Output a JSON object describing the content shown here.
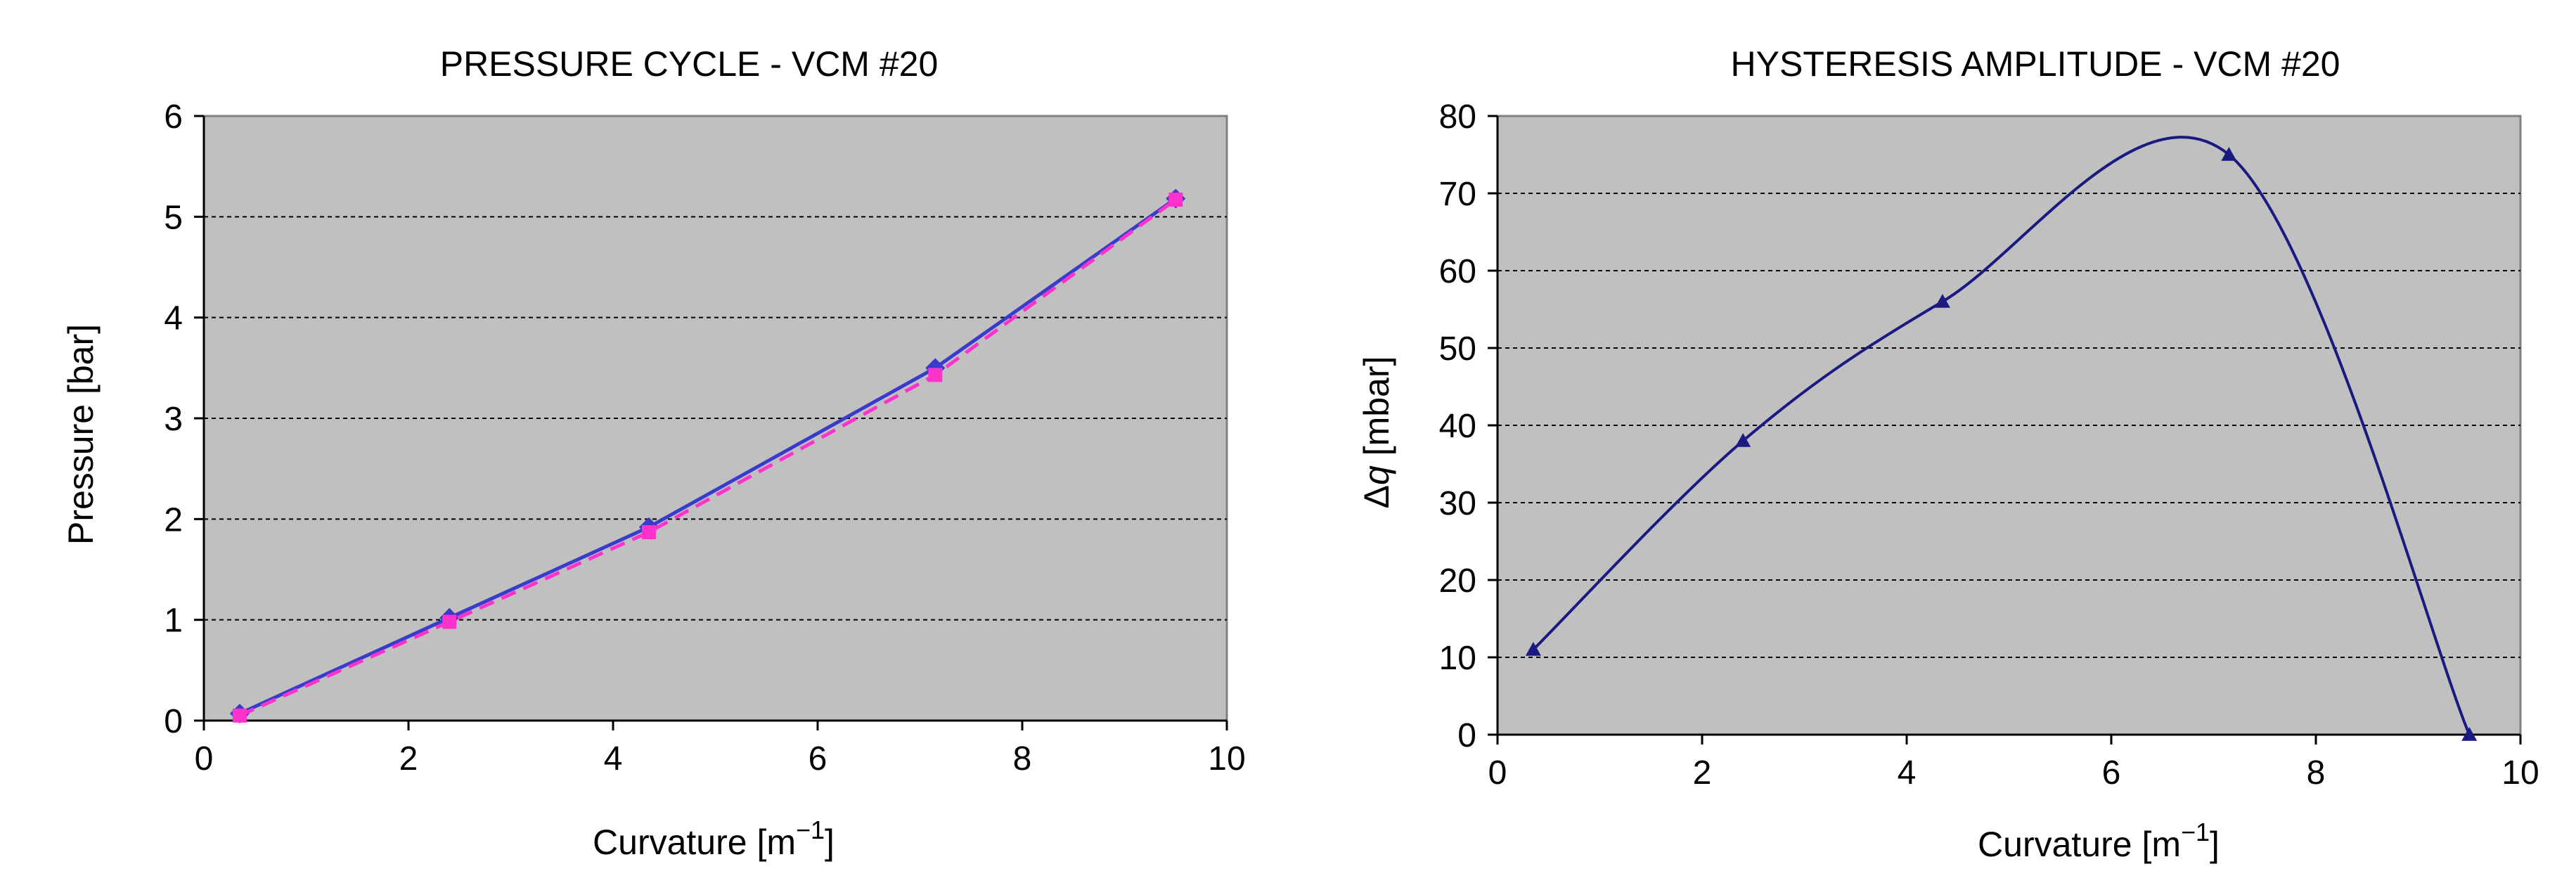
{
  "chart_data": [
    {
      "type": "line",
      "title": "PRESSURE CYCLE - VCM #20",
      "xlabel_main": "Curvature  [m",
      "xlabel_sup": "−1",
      "xlabel_end": "]",
      "ylabel": "Pressure  [bar]",
      "xlim": [
        0,
        10
      ],
      "ylim": [
        0,
        6
      ],
      "xticks": [
        "0",
        "2",
        "4",
        "6",
        "8",
        "10"
      ],
      "yticks": [
        "0",
        "1",
        "2",
        "3",
        "4",
        "5",
        "6"
      ],
      "grid": "horizontal dashed",
      "plot_background": "#c0c0c0",
      "series": [
        {
          "color": "#3a3acc",
          "style": "solid",
          "marker": "diamond",
          "x": [
            0.35,
            2.4,
            4.35,
            7.15,
            9.5
          ],
          "y": [
            0.07,
            1.02,
            1.92,
            3.5,
            5.18
          ]
        },
        {
          "color": "#ff33cc",
          "style": "dashed",
          "marker": "square",
          "x": [
            0.35,
            2.4,
            4.35,
            7.15,
            9.5
          ],
          "y": [
            0.05,
            0.98,
            1.87,
            3.43,
            5.17
          ]
        }
      ]
    },
    {
      "type": "line",
      "title": "HYSTERESIS AMPLITUDE - VCM #20",
      "xlabel_main": "Curvature  [m",
      "xlabel_sup": "−1",
      "xlabel_end": "]",
      "ylabel_delta": "Δ",
      "ylabel_q": "q",
      "ylabel_unit": " [mbar]",
      "xlim": [
        0,
        10
      ],
      "ylim": [
        0,
        80
      ],
      "xticks": [
        "0",
        "2",
        "4",
        "6",
        "8",
        "10"
      ],
      "yticks": [
        "0",
        "10",
        "20",
        "30",
        "40",
        "50",
        "60",
        "70",
        "80"
      ],
      "grid": "horizontal dashed",
      "plot_background": "#c0c0c0",
      "series": [
        {
          "color": "#1a1a80",
          "style": "smooth",
          "marker": "triangle",
          "x": [
            0.35,
            2.4,
            4.35,
            7.15,
            9.5
          ],
          "y": [
            11,
            38,
            56,
            75,
            0
          ]
        }
      ]
    }
  ]
}
